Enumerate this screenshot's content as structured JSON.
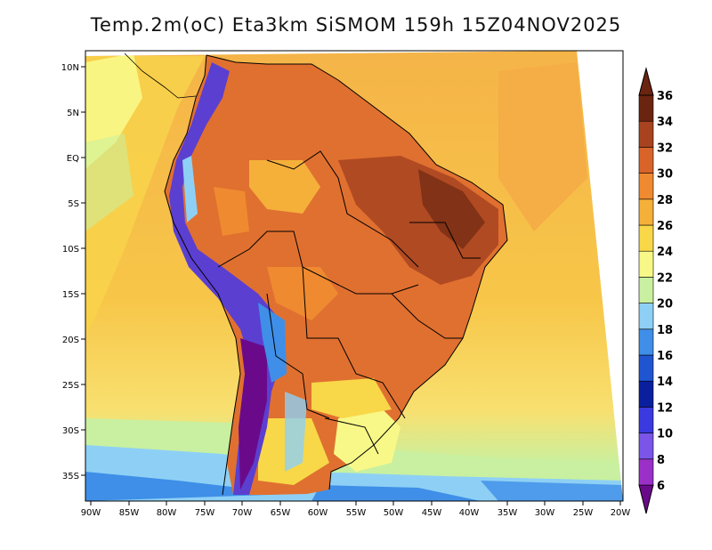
{
  "title": "Temp.2m(oC) Eta3km SiSMOM 159h 15Z04NOV2025",
  "lat_labels": [
    "10N",
    "5N",
    "EQ",
    "5S",
    "10S",
    "15S",
    "20S",
    "25S",
    "30S",
    "35S"
  ],
  "lon_labels": [
    "90W",
    "85W",
    "80W",
    "75W",
    "70W",
    "65W",
    "60W",
    "55W",
    "50W",
    "45W",
    "40W",
    "35W",
    "30W",
    "25W",
    "20W"
  ],
  "colorbar": {
    "labels": [
      "6",
      "8",
      "10",
      "12",
      "14",
      "16",
      "18",
      "20",
      "22",
      "24",
      "26",
      "28",
      "30",
      "32",
      "34",
      "36"
    ],
    "colors": [
      "#6a0a8a",
      "#9b30c8",
      "#7a55e8",
      "#3a3ae0",
      "#0a1f9e",
      "#1f55d0",
      "#3f8fe8",
      "#8ed0f5",
      "#c8f0a0",
      "#f8f888",
      "#f8d848",
      "#f5b03a",
      "#ef8a30",
      "#d9642a",
      "#a84320",
      "#6b2410"
    ]
  },
  "colors": {
    "ocean_warm": "#f5ad45",
    "ocean_mid": "#f8d24a",
    "ocean_cool": "#f6f69a",
    "land_hot": "#d9642a",
    "land_very_hot": "#a84320",
    "andes": "#5b3fd0",
    "coast_line": "#000000"
  }
}
